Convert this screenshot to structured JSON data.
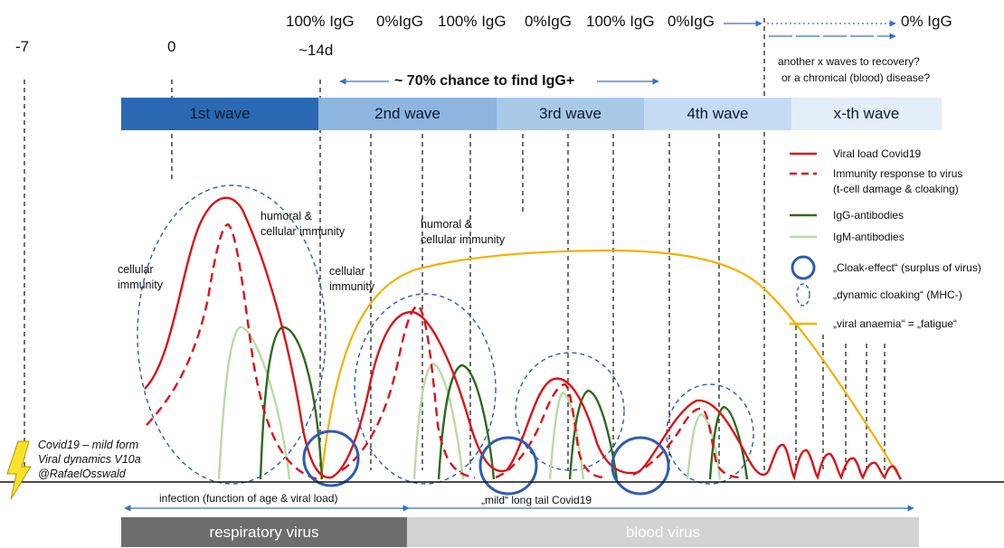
{
  "timeline": {
    "minus7": "-7",
    "zero": "0",
    "day14": "~14d"
  },
  "igg_top": {
    "a": "100% IgG",
    "b": "0%IgG",
    "c": "100% IgG",
    "d": "0%IgG",
    "e": "100% IgG",
    "f": "0%IgG",
    "g": "0% IgG"
  },
  "chance": "~ 70% chance to find IgG+",
  "recovery_note": {
    "line1": "another x waves to recovery?",
    "line2": "or a chronical (blood) disease?"
  },
  "waves": [
    "1st wave",
    "2nd wave",
    "3rd wave",
    "4th wave",
    "x-th wave"
  ],
  "annotations": {
    "cellular1_l1": "cellular",
    "cellular1_l2": "immunity",
    "humoral1_l1": "humoral &",
    "humoral1_l2": "cellular immunity",
    "cellular2_l1": "cellular",
    "cellular2_l2": "immunity",
    "humoral2_l1": "humoral &",
    "humoral2_l2": "cellular immunity"
  },
  "legend": {
    "viral_load": "Viral load Covid19",
    "immunity_l1": "Immunity response to virus",
    "immunity_l2": "(t-cell damage & cloaking)",
    "igg": "IgG-antibodies",
    "igm": "IgM-antibodies",
    "cloak": "„Cloak-effect“ (surplus of virus)",
    "dynamic": "„dynamic cloaking“ (MHC-)",
    "anaemia": "„viral anaemia“ = „fatigue“"
  },
  "signature": {
    "l1": "Covid19 – mild form",
    "l2": "Viral dynamics V10a",
    "l3": "@RafaelOsswald"
  },
  "bottom": {
    "infection": "infection (function of age & viral load)",
    "long_tail": "„mild“ long tail Covid19",
    "respiratory": "respiratory virus",
    "blood": "blood virus"
  },
  "colors": {
    "viral": "#d9141b",
    "igg": "#2e6a1f",
    "igm": "#b7dca4",
    "anaemia": "#f2b000",
    "cloak": "#2f5cb0",
    "arrow": "#3a6fc4",
    "wave1": "#2a69b1",
    "wave2": "#8db5df",
    "wave3": "#a8c8e8",
    "wave4": "#c5dbf1",
    "wave5": "#e3eef9",
    "resp_bar": "#6d6d6d",
    "blood_bar": "#d3d3d3"
  }
}
